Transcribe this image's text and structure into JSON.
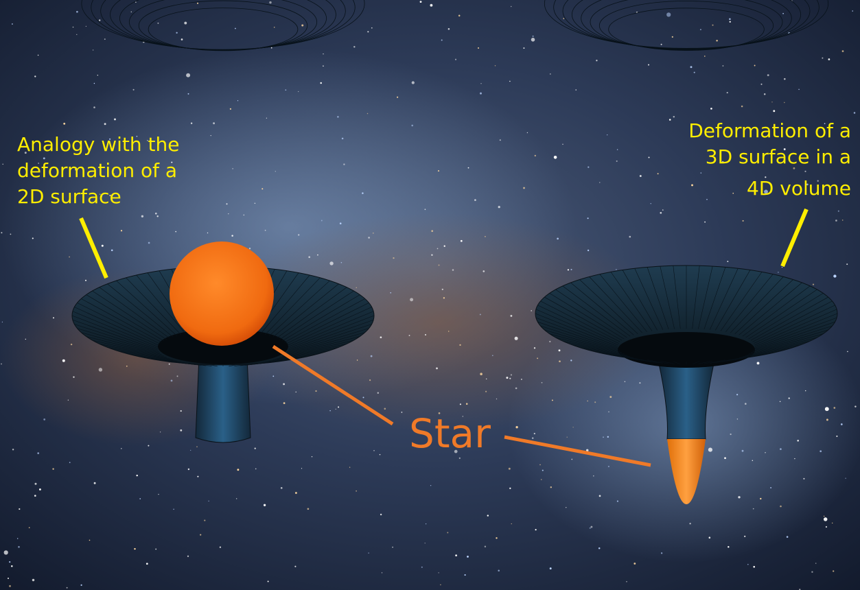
{
  "left_label": [
    "Analogy with the",
    "deformation of a",
    "2D surface"
  ],
  "right_label": [
    "Deformation of a",
    "3D surface in a",
    "4D volume"
  ],
  "center_label": "Star"
}
